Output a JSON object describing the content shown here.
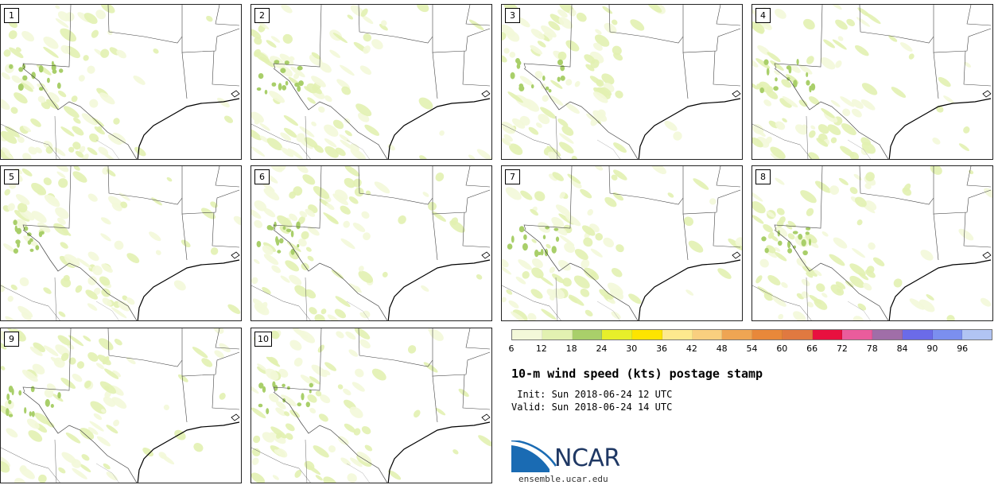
{
  "panels": [
    {
      "label": "1"
    },
    {
      "label": "2"
    },
    {
      "label": "3"
    },
    {
      "label": "4"
    },
    {
      "label": "5"
    },
    {
      "label": "6"
    },
    {
      "label": "7"
    },
    {
      "label": "8"
    },
    {
      "label": "9"
    },
    {
      "label": "10"
    }
  ],
  "colorbar": {
    "colors": [
      "#f3f8d9",
      "#e2f1b1",
      "#a9cf6a",
      "#e7ef2a",
      "#fde400",
      "#fde98e",
      "#f9cf7f",
      "#efa553",
      "#e8883a",
      "#e07940",
      "#e8103f",
      "#ea5c9c",
      "#a06ea8",
      "#6b6be8",
      "#7b8fef",
      "#b1c4f3"
    ],
    "tick_labels": [
      "6",
      "12",
      "18",
      "24",
      "30",
      "36",
      "42",
      "48",
      "54",
      "60",
      "66",
      "72",
      "78",
      "84",
      "90",
      "96"
    ]
  },
  "title": "10-m wind speed (kts) postage stamp",
  "init_line": " Init: Sun 2018-06-24 12 UTC",
  "valid_line": "Valid: Sun 2018-06-24 14 UTC",
  "logo": {
    "text": "NCAR",
    "color": "#1f3864",
    "accent": "#1a6bb3"
  },
  "url": "ensemble.ucar.edu"
}
